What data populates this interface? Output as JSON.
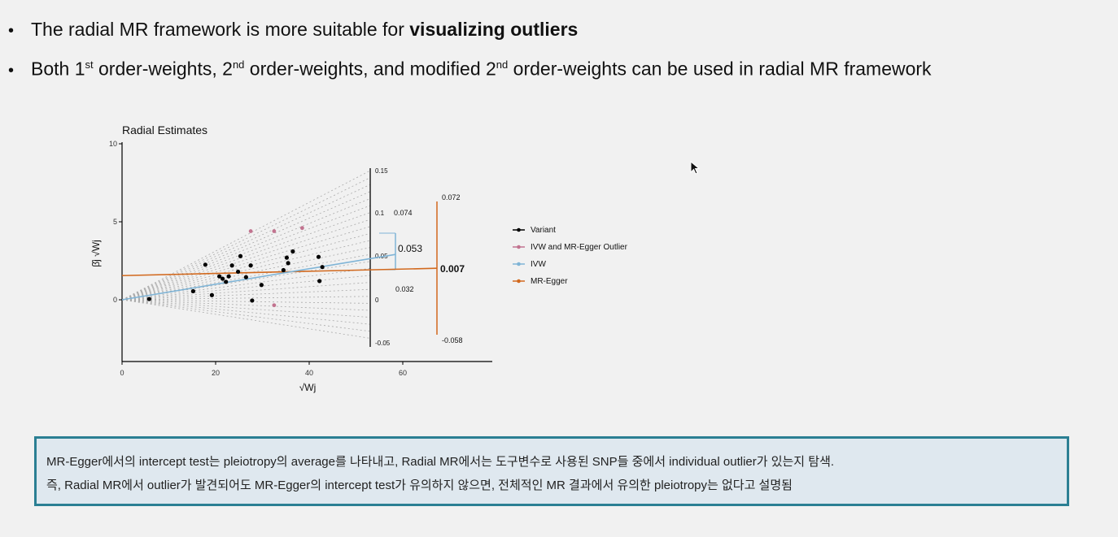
{
  "bullets": [
    {
      "pre": "The radial MR framework is more suitable for ",
      "bold": "visualizing outliers"
    },
    {
      "p1": "Both 1",
      "s1": "st",
      "p2": " order-weights, 2",
      "s2": "nd",
      "p3": " order-weights, and modified 2",
      "s3": "nd",
      "p4": " order-weights can be used in radial MR framework"
    }
  ],
  "note": {
    "line1": "MR-Egger에서의 intercept test는 pleiotropy의 average를 나타내고, Radial MR에서는 도구변수로 사용된 SNP들 중에서 individual outlier가 있는지 탐색.",
    "line2": "즉, Radial MR에서 outlier가 발견되어도 MR-Egger의 intercept test가 유의하지 않으면, 전체적인 MR 결과에서 유의한 pleiotropy는 없다고 설명됨"
  },
  "colors": {
    "variant": "#000000",
    "outlier": "#c2738f",
    "ivw": "#7fb4d6",
    "egger": "#d2691e",
    "accent": "#2b7f93"
  },
  "chart_data": {
    "type": "scatter",
    "title": "Radial Estimates",
    "xlabel": "√Wj",
    "ylabel": "β̂j √Wj",
    "xlim": [
      0,
      80
    ],
    "ylim": [
      -4,
      10
    ],
    "xticks": [
      "0",
      "20",
      "40",
      "60"
    ],
    "yticks": [
      "0",
      "5",
      "10"
    ],
    "legend_position": "right",
    "legend": [
      "Variant",
      "IVW and MR-Egger Outlier",
      "IVW",
      "MR-Egger"
    ],
    "variants": [
      [
        5.8,
        0.05
      ],
      [
        15.2,
        0.55
      ],
      [
        17.8,
        2.25
      ],
      [
        19.2,
        0.3
      ],
      [
        20.8,
        1.5
      ],
      [
        21.5,
        1.35
      ],
      [
        22.2,
        1.15
      ],
      [
        22.8,
        1.5
      ],
      [
        23.5,
        2.2
      ],
      [
        24.8,
        1.8
      ],
      [
        25.3,
        2.8
      ],
      [
        26.5,
        1.45
      ],
      [
        27.5,
        2.2
      ],
      [
        27.8,
        -0.05
      ],
      [
        29.8,
        0.95
      ],
      [
        34.5,
        1.9
      ],
      [
        35.2,
        2.7
      ],
      [
        35.5,
        2.35
      ],
      [
        36.5,
        3.1
      ],
      [
        42.0,
        2.75
      ],
      [
        42.2,
        1.2
      ],
      [
        42.8,
        2.1
      ]
    ],
    "outliers": [
      [
        27.5,
        4.4
      ],
      [
        32.5,
        4.4
      ],
      [
        38.5,
        4.6
      ],
      [
        32.5,
        -0.35
      ]
    ],
    "ivw": {
      "slope": 0.053,
      "intercept": 0
    },
    "egger": {
      "slope": 0.007,
      "intercept": 1.55
    },
    "ivw_label": "0.053",
    "egger_label": "0.007",
    "ivw_scale": {
      "labels": [
        "0.15",
        "0.1",
        "0.05",
        "0",
        "-0.05"
      ],
      "values": [
        0.15,
        0.1,
        0.05,
        0,
        -0.05
      ]
    },
    "ci_labels": [
      "0.072",
      "0.074",
      "0.032",
      "-0.058"
    ]
  },
  "cursor": "mouse-pointer-icon"
}
